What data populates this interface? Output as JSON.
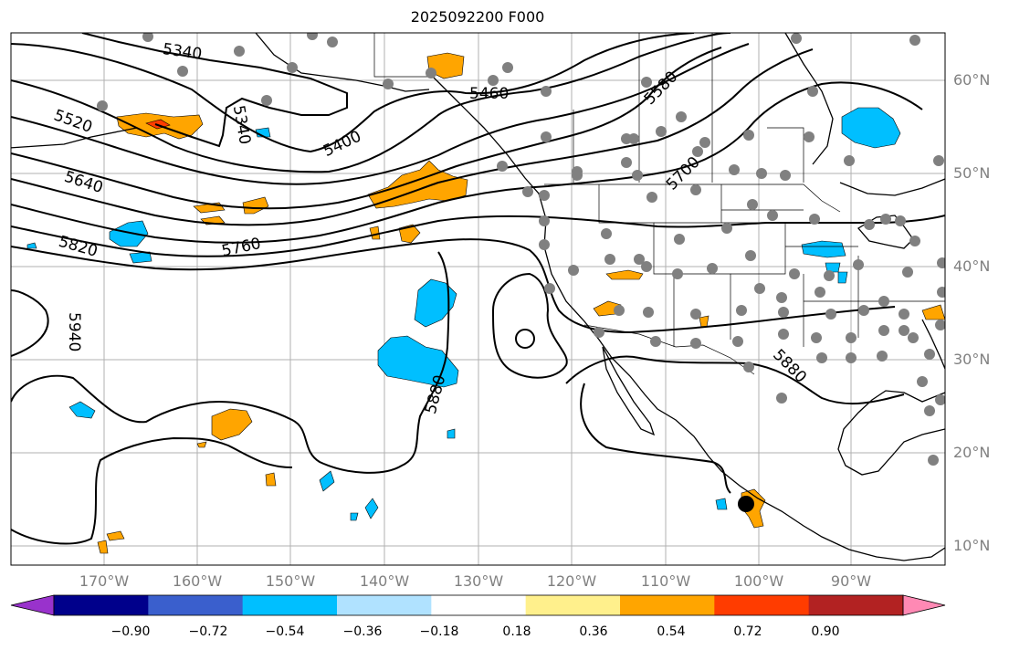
{
  "title": "2025092200 F000",
  "lat_labels": [
    "60°N",
    "50°N",
    "40°N",
    "30°N",
    "20°N",
    "10°N"
  ],
  "lon_labels": [
    "170°W",
    "160°W",
    "150°W",
    "140°W",
    "130°W",
    "120°W",
    "110°W",
    "100°W",
    "90°W"
  ],
  "colorbar": {
    "ticks": [
      "−0.90",
      "−0.72",
      "−0.54",
      "−0.36",
      "−0.18",
      "0.18",
      "0.36",
      "0.54",
      "0.72",
      "0.90"
    ],
    "colors": [
      "#9932cc",
      "#00008b",
      "#3a5fcd",
      "#00bfff",
      "#b0e2ff",
      "#ffffff",
      "#fff08c",
      "#ffa500",
      "#ff3c00",
      "#b22222",
      "#ff89b4"
    ]
  },
  "contour_labels": [
    "5340",
    "5340",
    "5460",
    "5580",
    "5520",
    "5400",
    "5640",
    "5700",
    "5760",
    "5820",
    "5940",
    "5880",
    "5880"
  ],
  "colors": {
    "positive": "#ffa500",
    "negative": "#00bfff",
    "station": "#808080",
    "grid": "#b0b0b0",
    "contour": "#000000"
  }
}
